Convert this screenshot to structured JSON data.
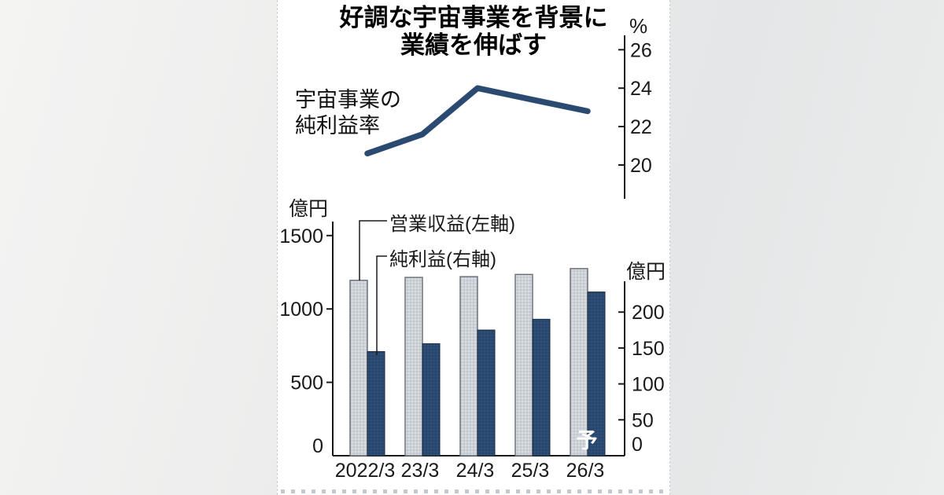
{
  "title": {
    "line1": "好調な宇宙事業を背景に",
    "line2": "業績を伸ばす"
  },
  "colors": {
    "navy": "#2b4a72",
    "navy_dot": "#203c61",
    "navy_stroke": "#17293f",
    "gray_bar": "#cdd2d8",
    "gray_dot": "#b3bac2",
    "gray_stroke": "#666c73",
    "axis": "#1a1a1a",
    "card_bg": "#ffffff"
  },
  "chart_data": [
    {
      "type": "line",
      "title": "宇宙事業の純利益率",
      "label_line1": "宇宙事業の",
      "label_line2": "純利益率",
      "unit": "%",
      "x": [
        "2022/3",
        "23/3",
        "24/3",
        "25/3",
        "26/3"
      ],
      "values": [
        20.6,
        21.6,
        24.0,
        23.4,
        22.8
      ],
      "yticks": [
        20,
        22,
        24,
        26
      ],
      "ylim": [
        19,
        27
      ],
      "legend_position": "left-of-line",
      "grid": false
    },
    {
      "type": "bar",
      "categories": [
        "2022/3",
        "23/3",
        "24/3",
        "25/3",
        "26/3"
      ],
      "series": [
        {
          "name": "営業収益(左軸)",
          "axis": "left",
          "values": [
            1195,
            1215,
            1220,
            1235,
            1275
          ]
        },
        {
          "name": "純利益(右軸)",
          "axis": "right",
          "values": [
            145,
            156,
            175,
            190,
            228
          ]
        }
      ],
      "left_axis": {
        "unit": "億円",
        "ticks": [
          0,
          500,
          1000,
          1500
        ],
        "max": 1600
      },
      "right_axis": {
        "unit": "億円",
        "ticks": [
          0,
          50,
          100,
          150,
          200
        ],
        "max": 245
      },
      "forecast_label": "予",
      "forecast_index": 4,
      "grid": false
    }
  ]
}
